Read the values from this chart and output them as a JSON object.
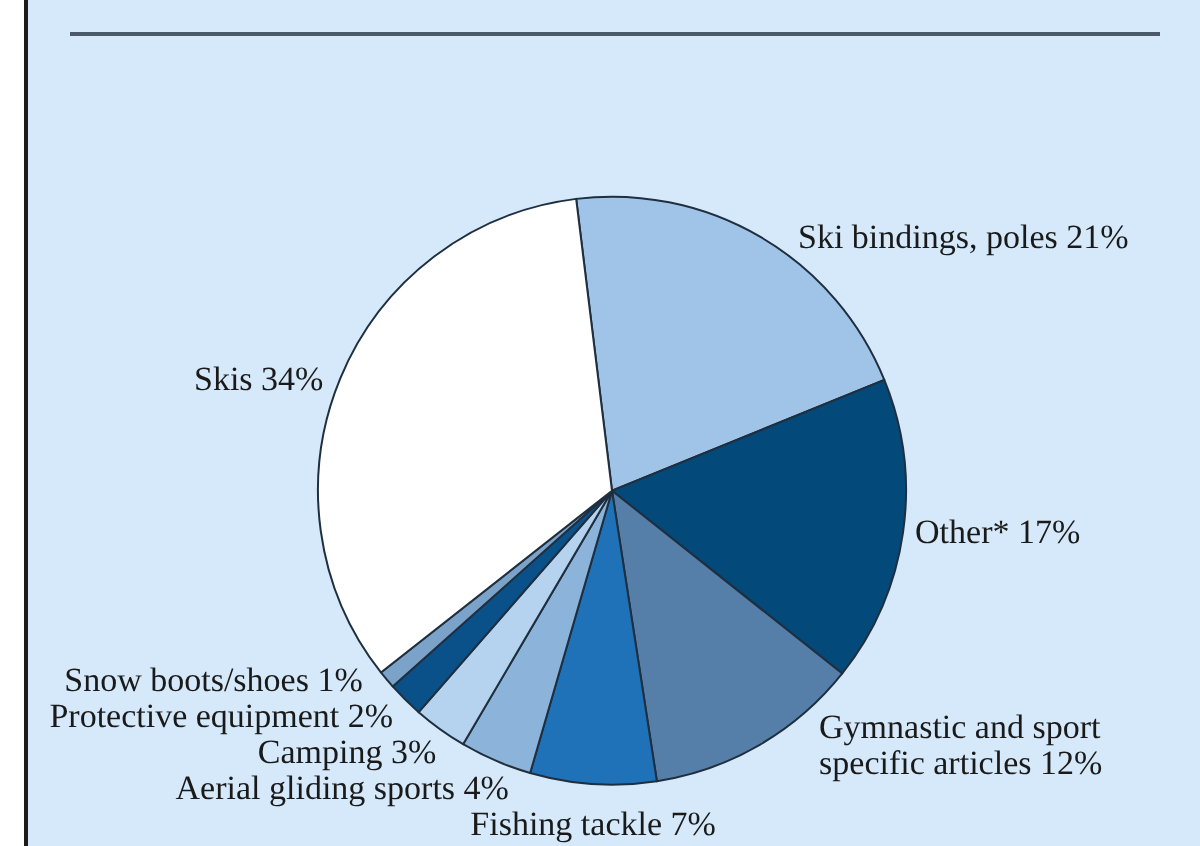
{
  "chart_data": {
    "type": "pie",
    "categories": [
      "Ski bindings, poles",
      "Other*",
      "Gymnastic and sport specific articles",
      "Fishing tackle",
      "Aerial gliding sports",
      "Camping",
      "Protective equipment",
      "Snow boots/shoes",
      "Skis"
    ],
    "values": [
      21,
      17,
      12,
      7,
      4,
      3,
      2,
      1,
      34
    ],
    "value_labels": [
      "21%",
      "17%",
      "12%",
      "7%",
      "4%",
      "3%",
      "2%",
      "1%",
      "34%"
    ],
    "colors": [
      "#9fc4e7",
      "#034a7b",
      "#557fa8",
      "#1f72b8",
      "#8cb3da",
      "#b5d3ef",
      "#0b5189",
      "#7ba2c8",
      "#ffffff"
    ]
  }
}
